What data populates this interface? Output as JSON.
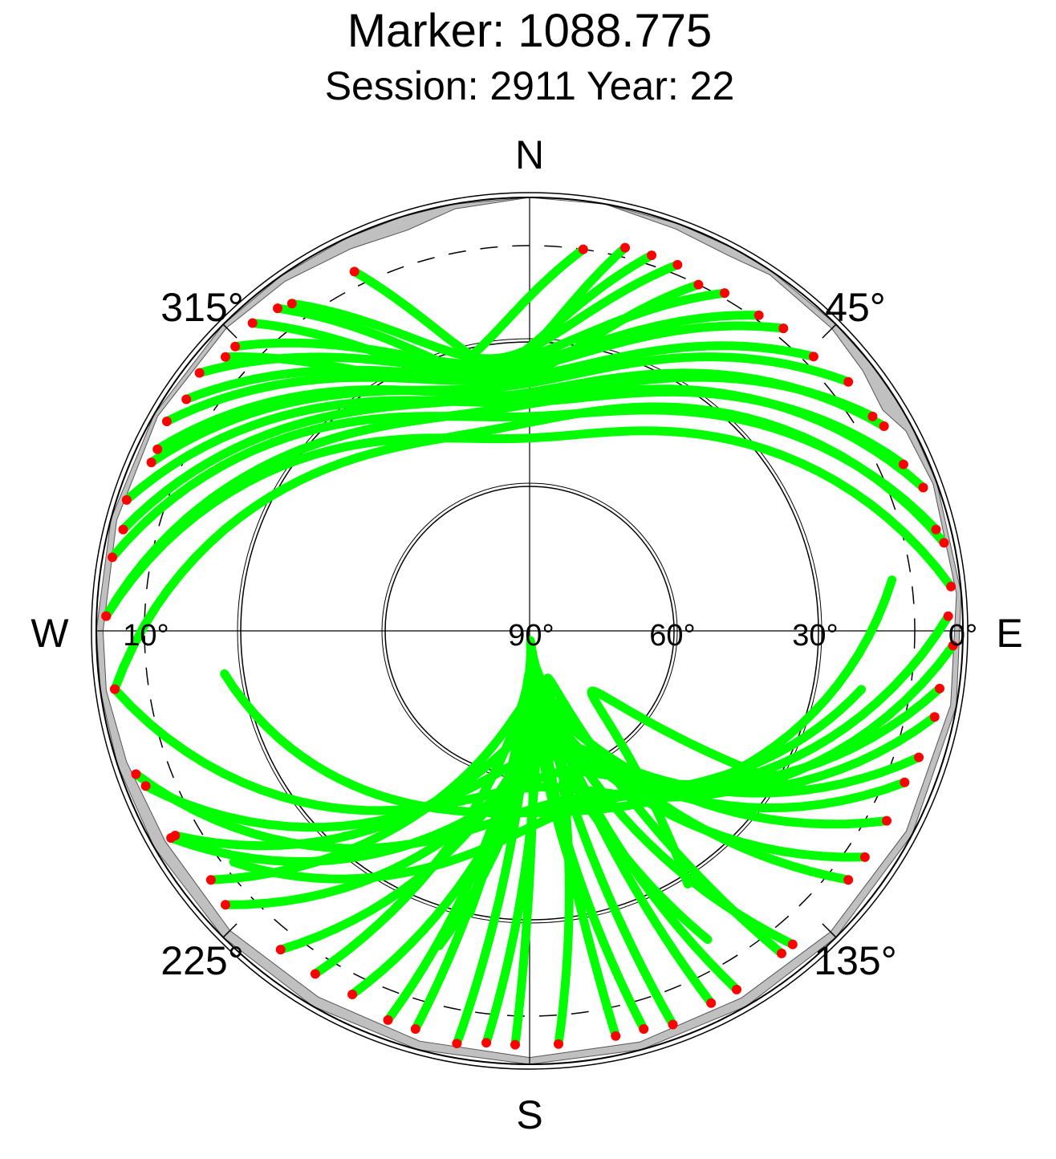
{
  "title": "Marker: 1088.775",
  "subtitle": "Session: 2911 Year: 22",
  "chart_data": {
    "type": "polar-skyplot",
    "title": "Marker: 1088.775",
    "subtitle": "Session: 2911 Year: 22",
    "cardinal_labels": {
      "north": "N",
      "east": "E",
      "south": "S",
      "west": "W"
    },
    "azimuth_labels": [
      {
        "azimuth": 45,
        "text": "45°"
      },
      {
        "azimuth": 135,
        "text": "135°"
      },
      {
        "azimuth": 225,
        "text": "225°"
      },
      {
        "azimuth": 315,
        "text": "315°"
      }
    ],
    "elevation_labels": [
      {
        "elevation": 90,
        "text": "90°"
      },
      {
        "elevation": 60,
        "text": "60°"
      },
      {
        "elevation": 30,
        "text": "30°"
      },
      {
        "elevation": 0,
        "text": "0°"
      },
      {
        "elevation": 10,
        "text": "10°",
        "side": "west"
      }
    ],
    "elevation_rings": [
      60,
      30
    ],
    "cutoff_elevation_dashed": 10,
    "colors": {
      "track": "#00ff00",
      "low_elevation_point": "#ff0000",
      "horizon_mask": "#c0c0c0",
      "grid": "#000000"
    },
    "track_arcs": [
      {
        "az_start": 8,
        "el_start": 10,
        "el_max": 36,
        "az_end": 312,
        "el_end": 5
      },
      {
        "az_start": 18,
        "el_start": 8,
        "el_max": 38,
        "az_end": 318,
        "el_end": 4
      },
      {
        "az_start": 26,
        "el_start": 10,
        "el_max": 40,
        "az_end": 322,
        "el_end": 5
      },
      {
        "az_start": 36,
        "el_start": 9,
        "el_max": 38,
        "az_end": 308,
        "el_end": 3
      },
      {
        "az_start": 46,
        "el_start": 8,
        "el_max": 40,
        "az_end": 300,
        "el_end": 3
      },
      {
        "az_start": 58,
        "el_start": 6,
        "el_max": 42,
        "az_end": 296,
        "el_end": 4
      },
      {
        "az_start": 66,
        "el_start": 5,
        "el_max": 44,
        "az_end": 288,
        "el_end": 2
      },
      {
        "az_start": 76,
        "el_start": 3,
        "el_max": 46,
        "az_end": 280,
        "el_end": 2
      },
      {
        "az_start": 84,
        "el_start": 2,
        "el_max": 50,
        "az_end": 272,
        "el_end": 2
      },
      {
        "az_start": 92,
        "el_start": 2,
        "el_max": 58,
        "az_end": 262,
        "el_end": 3
      },
      {
        "az_start": 102,
        "el_start": 4,
        "el_max": 64,
        "az_end": 248,
        "el_end": 4
      },
      {
        "az_start": 112,
        "el_start": 6,
        "el_max": 70,
        "az_end": 240,
        "el_end": 5
      },
      {
        "az_start": 124,
        "el_start": 6,
        "el_max": 76,
        "az_end": 232,
        "el_end": 6
      },
      {
        "az_start": 140,
        "el_start": 5,
        "el_max": 82,
        "az_end": 212,
        "el_end": 6
      },
      {
        "az_start": 150,
        "el_start": 4,
        "el_max": 86,
        "az_end": 200,
        "el_end": 4
      },
      {
        "az_start": 160,
        "el_start": 3,
        "el_max": 88,
        "az_end": 190,
        "el_end": 3
      },
      {
        "az_start": 168,
        "el_start": 4,
        "el_max": 84,
        "az_end": 182,
        "el_end": 4
      },
      {
        "az_start": 176,
        "el_start": 4,
        "el_max": 80,
        "az_end": 142,
        "el_end": 5
      },
      {
        "az_start": 186,
        "el_start": 4,
        "el_max": 82,
        "az_end": 154,
        "el_end": 4
      },
      {
        "az_start": 196,
        "el_start": 4,
        "el_max": 80,
        "az_end": 164,
        "el_end": 4
      },
      {
        "az_start": 206,
        "el_start": 6,
        "el_max": 76,
        "az_end": 128,
        "el_end": 6
      },
      {
        "az_start": 218,
        "el_start": 6,
        "el_max": 72,
        "az_end": 118,
        "el_end": 6
      },
      {
        "az_start": 228,
        "el_start": 5,
        "el_max": 66,
        "az_end": 108,
        "el_end": 5
      },
      {
        "az_start": 240,
        "el_start": 4,
        "el_max": 60,
        "az_end": 98,
        "el_end": 4
      },
      {
        "az_start": 250,
        "el_start": 3,
        "el_max": 54,
        "az_end": 88,
        "el_end": 3
      },
      {
        "az_start": 262,
        "el_start": 3,
        "el_max": 48,
        "az_end": 78,
        "el_end": 2
      },
      {
        "az_start": 272,
        "el_start": 2,
        "el_max": 44,
        "az_end": 70,
        "el_end": 3
      },
      {
        "az_start": 284,
        "el_start": 3,
        "el_max": 42,
        "az_end": 60,
        "el_end": 5
      },
      {
        "az_start": 294,
        "el_start": 4,
        "el_max": 40,
        "az_end": 52,
        "el_end": 6
      },
      {
        "az_start": 304,
        "el_start": 4,
        "el_max": 38,
        "az_end": 40,
        "el_end": 8
      },
      {
        "az_start": 314,
        "el_start": 5,
        "el_max": 36,
        "az_end": 30,
        "el_end": 9
      },
      {
        "az_start": 324,
        "el_start": 6,
        "el_max": 34,
        "az_end": 22,
        "el_end": 8
      },
      {
        "az_start": 334,
        "el_start": 7,
        "el_max": 35,
        "az_end": 14,
        "el_end": 8
      },
      {
        "az_start": 232,
        "el_start": 12,
        "el_max": 56,
        "az_end": 100,
        "el_end": 20
      },
      {
        "az_start": 196,
        "el_start": 22,
        "el_max": 70,
        "az_end": 150,
        "el_end": 16
      },
      {
        "az_start": 170,
        "el_start": 40,
        "el_max": 86,
        "az_end": 192,
        "el_end": 30
      },
      {
        "az_start": 148,
        "el_start": 28,
        "el_max": 74,
        "az_end": 120,
        "el_end": 24
      },
      {
        "az_start": 262,
        "el_start": 26,
        "el_max": 58,
        "az_end": 82,
        "el_end": 14
      }
    ],
    "horizon_mask": [
      {
        "az": 0,
        "el": 0
      },
      {
        "az": 10,
        "el": 0
      },
      {
        "az": 20,
        "el": 1.2
      },
      {
        "az": 28,
        "el": 1.8
      },
      {
        "az": 34,
        "el": 0.8
      },
      {
        "az": 45,
        "el": 1.2
      },
      {
        "az": 52,
        "el": 2.2
      },
      {
        "az": 58,
        "el": 3.5
      },
      {
        "az": 62,
        "el": 1.5
      },
      {
        "az": 70,
        "el": 0.8
      },
      {
        "az": 85,
        "el": 1.0
      },
      {
        "az": 100,
        "el": 1.2
      },
      {
        "az": 118,
        "el": 1.4
      },
      {
        "az": 135,
        "el": 1.6
      },
      {
        "az": 150,
        "el": 2.0
      },
      {
        "az": 165,
        "el": 1.6
      },
      {
        "az": 180,
        "el": 1.4
      },
      {
        "az": 195,
        "el": 1.8
      },
      {
        "az": 210,
        "el": 2.2
      },
      {
        "az": 225,
        "el": 2.0
      },
      {
        "az": 240,
        "el": 2.6
      },
      {
        "az": 252,
        "el": 2.0
      },
      {
        "az": 262,
        "el": 1.2
      },
      {
        "az": 270,
        "el": 1.4
      },
      {
        "az": 285,
        "el": 1.2
      },
      {
        "az": 300,
        "el": 0.8
      },
      {
        "az": 315,
        "el": 1.0
      },
      {
        "az": 325,
        "el": 1.4
      },
      {
        "az": 335,
        "el": 2.4
      },
      {
        "az": 343,
        "el": 3.0
      },
      {
        "az": 350,
        "el": 1.0
      },
      {
        "az": 360,
        "el": 0
      }
    ]
  }
}
